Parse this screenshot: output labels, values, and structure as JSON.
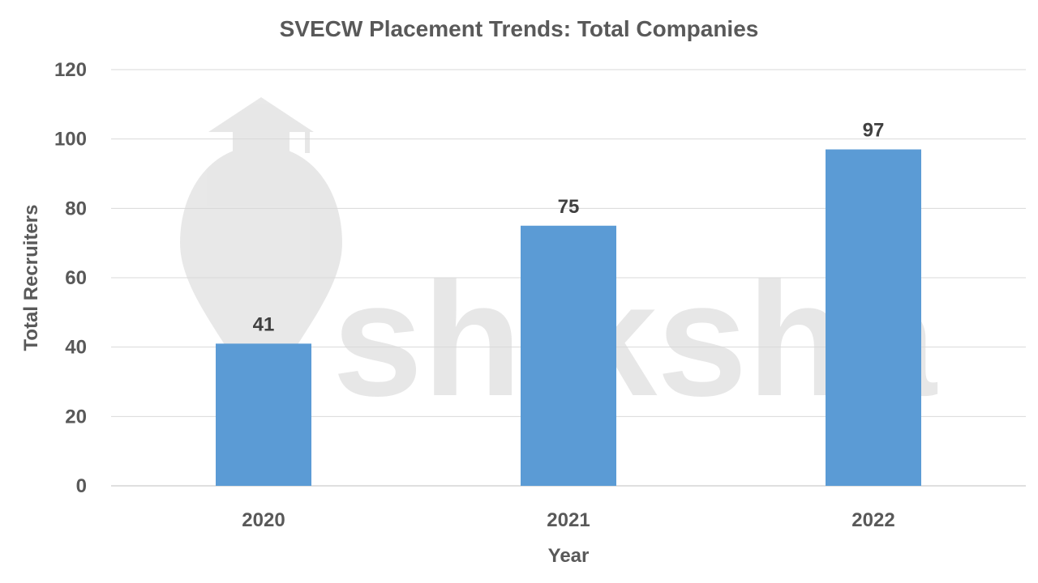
{
  "chart_data": {
    "type": "bar",
    "title": "SVECW Placement Trends: Total Companies",
    "xlabel": "Year",
    "ylabel": "Total Recruiters",
    "categories": [
      "2020",
      "2021",
      "2022"
    ],
    "values": [
      41,
      75,
      97
    ],
    "ylim": [
      0,
      120
    ],
    "yticks": [
      0,
      20,
      40,
      60,
      80,
      100,
      120
    ],
    "grid": true,
    "legend": "none",
    "data_labels": true,
    "bar_color": "#5B9BD5"
  },
  "watermark_text": "shiksha"
}
